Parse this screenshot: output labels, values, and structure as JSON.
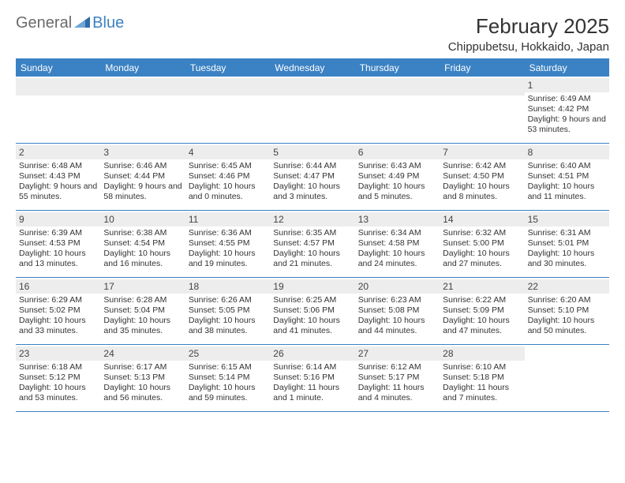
{
  "brand": {
    "part1": "General",
    "part2": "Blue"
  },
  "header": {
    "title": "February 2025",
    "location": "Chippubetsu, Hokkaido, Japan"
  },
  "colors": {
    "accent": "#3b82c4",
    "daybar": "#ededed",
    "text": "#333333",
    "logo_gray": "#6b6b6b"
  },
  "dow": [
    "Sunday",
    "Monday",
    "Tuesday",
    "Wednesday",
    "Thursday",
    "Friday",
    "Saturday"
  ],
  "weeks": [
    [
      null,
      null,
      null,
      null,
      null,
      null,
      {
        "n": "1",
        "sr": "Sunrise: 6:49 AM",
        "ss": "Sunset: 4:42 PM",
        "dl": "Daylight: 9 hours and 53 minutes."
      }
    ],
    [
      {
        "n": "2",
        "sr": "Sunrise: 6:48 AM",
        "ss": "Sunset: 4:43 PM",
        "dl": "Daylight: 9 hours and 55 minutes."
      },
      {
        "n": "3",
        "sr": "Sunrise: 6:46 AM",
        "ss": "Sunset: 4:44 PM",
        "dl": "Daylight: 9 hours and 58 minutes."
      },
      {
        "n": "4",
        "sr": "Sunrise: 6:45 AM",
        "ss": "Sunset: 4:46 PM",
        "dl": "Daylight: 10 hours and 0 minutes."
      },
      {
        "n": "5",
        "sr": "Sunrise: 6:44 AM",
        "ss": "Sunset: 4:47 PM",
        "dl": "Daylight: 10 hours and 3 minutes."
      },
      {
        "n": "6",
        "sr": "Sunrise: 6:43 AM",
        "ss": "Sunset: 4:49 PM",
        "dl": "Daylight: 10 hours and 5 minutes."
      },
      {
        "n": "7",
        "sr": "Sunrise: 6:42 AM",
        "ss": "Sunset: 4:50 PM",
        "dl": "Daylight: 10 hours and 8 minutes."
      },
      {
        "n": "8",
        "sr": "Sunrise: 6:40 AM",
        "ss": "Sunset: 4:51 PM",
        "dl": "Daylight: 10 hours and 11 minutes."
      }
    ],
    [
      {
        "n": "9",
        "sr": "Sunrise: 6:39 AM",
        "ss": "Sunset: 4:53 PM",
        "dl": "Daylight: 10 hours and 13 minutes."
      },
      {
        "n": "10",
        "sr": "Sunrise: 6:38 AM",
        "ss": "Sunset: 4:54 PM",
        "dl": "Daylight: 10 hours and 16 minutes."
      },
      {
        "n": "11",
        "sr": "Sunrise: 6:36 AM",
        "ss": "Sunset: 4:55 PM",
        "dl": "Daylight: 10 hours and 19 minutes."
      },
      {
        "n": "12",
        "sr": "Sunrise: 6:35 AM",
        "ss": "Sunset: 4:57 PM",
        "dl": "Daylight: 10 hours and 21 minutes."
      },
      {
        "n": "13",
        "sr": "Sunrise: 6:34 AM",
        "ss": "Sunset: 4:58 PM",
        "dl": "Daylight: 10 hours and 24 minutes."
      },
      {
        "n": "14",
        "sr": "Sunrise: 6:32 AM",
        "ss": "Sunset: 5:00 PM",
        "dl": "Daylight: 10 hours and 27 minutes."
      },
      {
        "n": "15",
        "sr": "Sunrise: 6:31 AM",
        "ss": "Sunset: 5:01 PM",
        "dl": "Daylight: 10 hours and 30 minutes."
      }
    ],
    [
      {
        "n": "16",
        "sr": "Sunrise: 6:29 AM",
        "ss": "Sunset: 5:02 PM",
        "dl": "Daylight: 10 hours and 33 minutes."
      },
      {
        "n": "17",
        "sr": "Sunrise: 6:28 AM",
        "ss": "Sunset: 5:04 PM",
        "dl": "Daylight: 10 hours and 35 minutes."
      },
      {
        "n": "18",
        "sr": "Sunrise: 6:26 AM",
        "ss": "Sunset: 5:05 PM",
        "dl": "Daylight: 10 hours and 38 minutes."
      },
      {
        "n": "19",
        "sr": "Sunrise: 6:25 AM",
        "ss": "Sunset: 5:06 PM",
        "dl": "Daylight: 10 hours and 41 minutes."
      },
      {
        "n": "20",
        "sr": "Sunrise: 6:23 AM",
        "ss": "Sunset: 5:08 PM",
        "dl": "Daylight: 10 hours and 44 minutes."
      },
      {
        "n": "21",
        "sr": "Sunrise: 6:22 AM",
        "ss": "Sunset: 5:09 PM",
        "dl": "Daylight: 10 hours and 47 minutes."
      },
      {
        "n": "22",
        "sr": "Sunrise: 6:20 AM",
        "ss": "Sunset: 5:10 PM",
        "dl": "Daylight: 10 hours and 50 minutes."
      }
    ],
    [
      {
        "n": "23",
        "sr": "Sunrise: 6:18 AM",
        "ss": "Sunset: 5:12 PM",
        "dl": "Daylight: 10 hours and 53 minutes."
      },
      {
        "n": "24",
        "sr": "Sunrise: 6:17 AM",
        "ss": "Sunset: 5:13 PM",
        "dl": "Daylight: 10 hours and 56 minutes."
      },
      {
        "n": "25",
        "sr": "Sunrise: 6:15 AM",
        "ss": "Sunset: 5:14 PM",
        "dl": "Daylight: 10 hours and 59 minutes."
      },
      {
        "n": "26",
        "sr": "Sunrise: 6:14 AM",
        "ss": "Sunset: 5:16 PM",
        "dl": "Daylight: 11 hours and 1 minute."
      },
      {
        "n": "27",
        "sr": "Sunrise: 6:12 AM",
        "ss": "Sunset: 5:17 PM",
        "dl": "Daylight: 11 hours and 4 minutes."
      },
      {
        "n": "28",
        "sr": "Sunrise: 6:10 AM",
        "ss": "Sunset: 5:18 PM",
        "dl": "Daylight: 11 hours and 7 minutes."
      },
      null
    ]
  ]
}
